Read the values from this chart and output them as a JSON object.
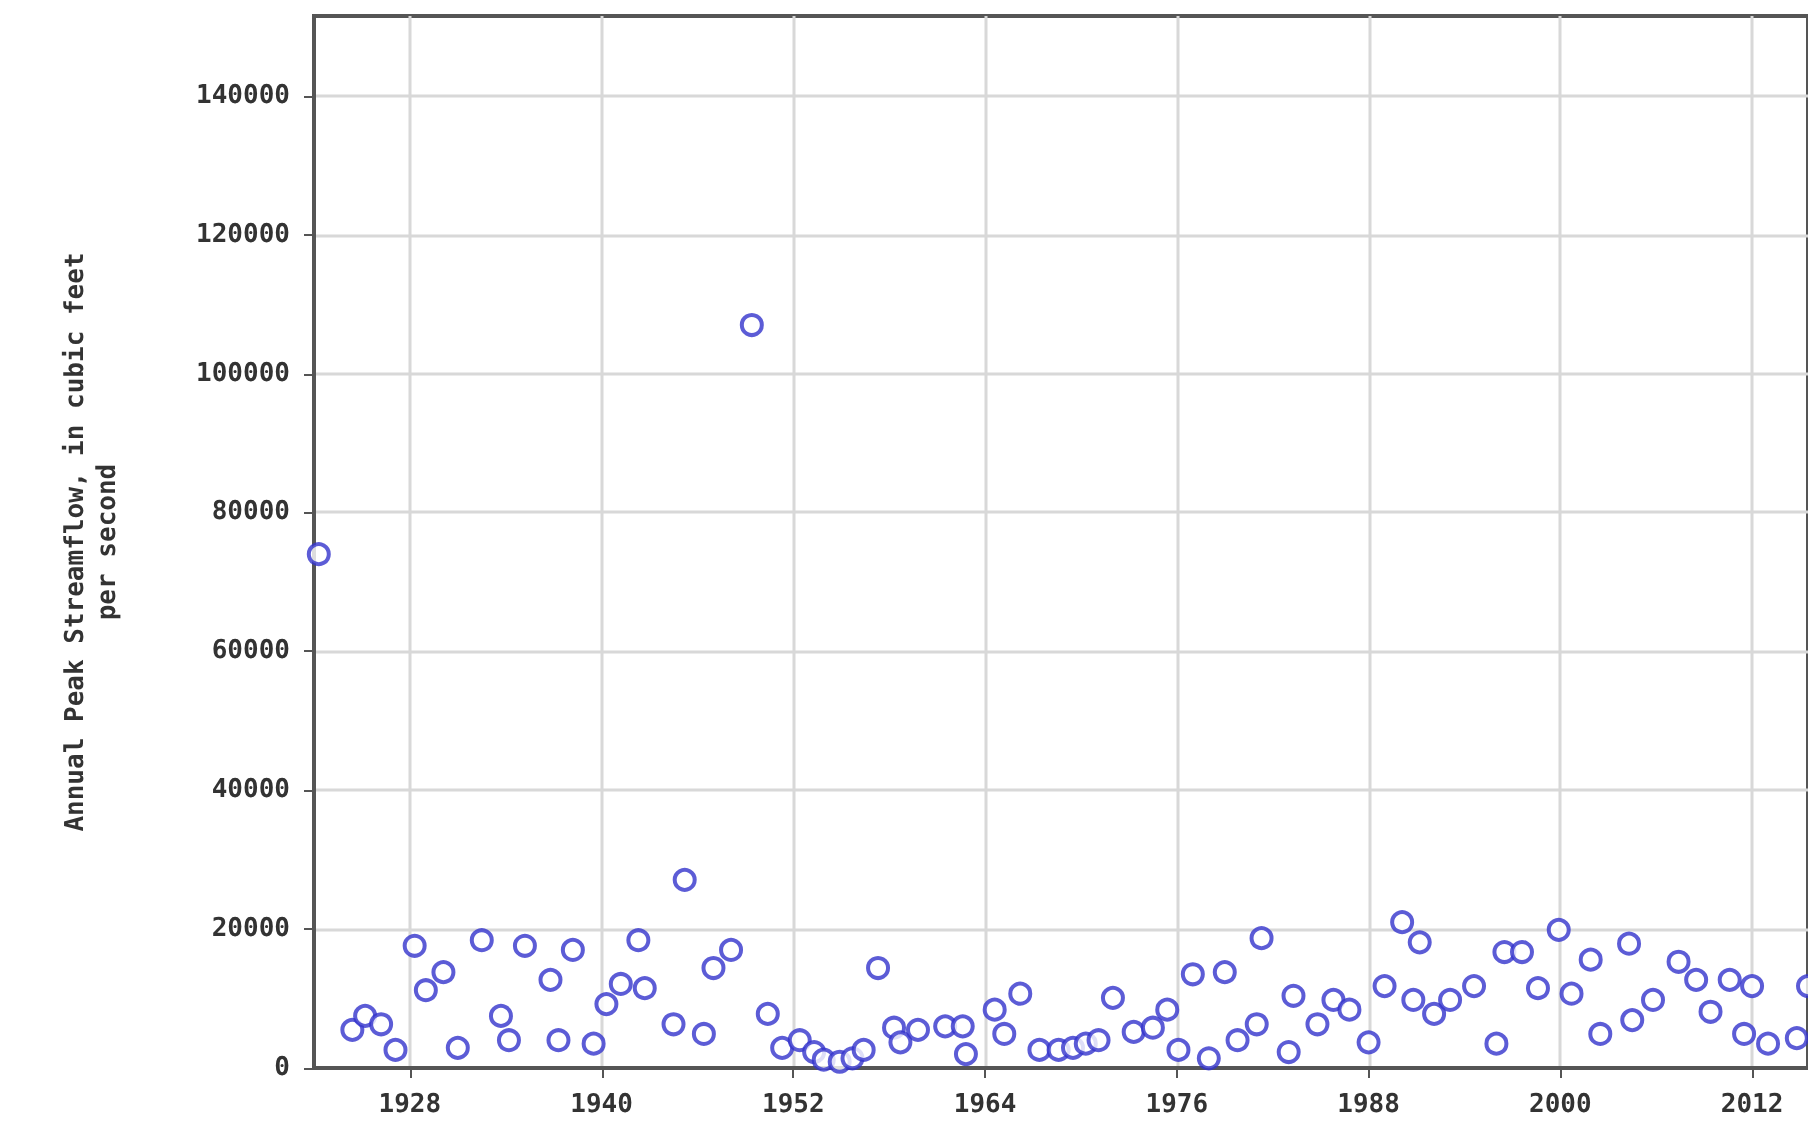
{
  "chart_data": {
    "type": "scatter",
    "ylabel": "Annual Peak Streamflow, in cubic feet\nper second",
    "x": [
      1922.3,
      1924.4,
      1925.2,
      1926.2,
      1927.1,
      1928.3,
      1929.0,
      1930.1,
      1931.0,
      1932.5,
      1933.7,
      1934.2,
      1935.2,
      1936.8,
      1937.3,
      1938.2,
      1939.5,
      1940.3,
      1941.2,
      1942.3,
      1942.7,
      1944.5,
      1945.2,
      1946.4,
      1947.0,
      1948.1,
      1949.4,
      1950.4,
      1951.3,
      1952.4,
      1953.3,
      1953.9,
      1954.9,
      1955.7,
      1956.4,
      1957.3,
      1958.3,
      1958.7,
      1959.8,
      1961.5,
      1962.6,
      1962.8,
      1964.6,
      1965.2,
      1966.2,
      1967.4,
      1968.6,
      1969.5,
      1970.3,
      1971.1,
      1972.0,
      1973.3,
      1974.5,
      1975.4,
      1976.1,
      1977.0,
      1978.0,
      1979.0,
      1979.8,
      1981.0,
      1981.3,
      1983.0,
      1983.3,
      1984.8,
      1985.8,
      1986.8,
      1988.0,
      1989.0,
      1990.1,
      1990.8,
      1991.2,
      1992.1,
      1993.1,
      1994.6,
      1996.0,
      1996.5,
      1997.6,
      1998.6,
      1999.9,
      2000.7,
      2001.9,
      2002.5,
      2004.3,
      2004.5,
      2005.8,
      2007.4,
      2008.5,
      2009.4,
      2010.6,
      2011.5,
      2012.0,
      2013.0,
      2014.8,
      2015.5
    ],
    "series": [
      {
        "color": "#3333cc",
        "values": [
          74000,
          5500,
          7500,
          6300,
          2600,
          17600,
          11200,
          13800,
          2900,
          18400,
          7500,
          4000,
          17600,
          12700,
          4000,
          17000,
          3500,
          9200,
          12100,
          18400,
          11500,
          6300,
          27100,
          4900,
          14400,
          17000,
          107000,
          7800,
          2900,
          4000,
          2300,
          1200,
          900,
          1400,
          2600,
          14400,
          5800,
          3700,
          5500,
          6000,
          6000,
          2000,
          8400,
          4900,
          10700,
          2600,
          2600,
          2900,
          3500,
          4000,
          10100,
          5200,
          5800,
          8400,
          2600,
          13500,
          1400,
          13800,
          4000,
          6300,
          18700,
          2300,
          10400,
          6300,
          9800,
          8400,
          3700,
          11800,
          21000,
          9800,
          18100,
          7800,
          9800,
          11800,
          3500,
          16700,
          16700,
          11500,
          19900,
          10700,
          15600,
          4900,
          17900,
          6900,
          9800,
          15300,
          12700,
          8100,
          12700,
          4900,
          11800,
          3500,
          4300,
          11800
        ]
      }
    ],
    "xlim": [
      1922,
      2015.5
    ],
    "xticks": [
      1928,
      1940,
      1952,
      1964,
      1976,
      1988,
      2000,
      2012
    ],
    "ylim": [
      0,
      151500
    ],
    "yticks": [
      0,
      20000,
      40000,
      60000,
      80000,
      100000,
      120000,
      140000
    ],
    "grid": true,
    "marker": "circle"
  }
}
